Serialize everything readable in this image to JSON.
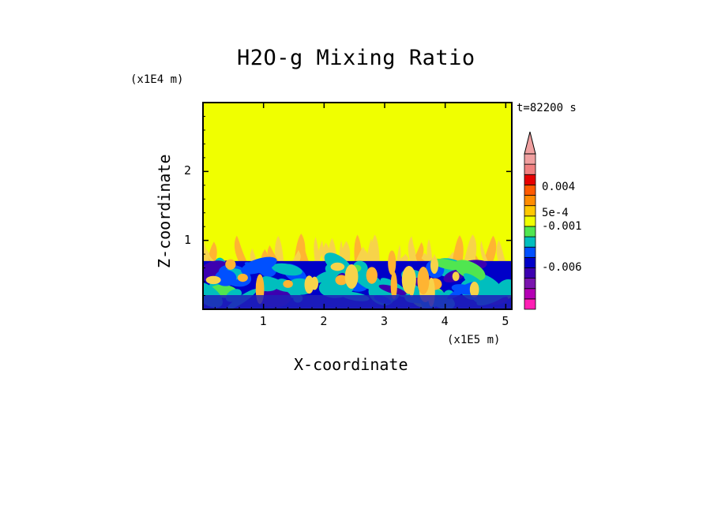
{
  "chart_data": {
    "type": "heatmap",
    "title": "H2O-g Mixing Ratio",
    "xlabel": "X-coordinate",
    "ylabel": "Z-coordinate",
    "x_unit_label": "(x1E5 m)",
    "y_unit_label": "(x1E4 m)",
    "time_label": "t=82200 s",
    "xlim": [
      0,
      5.1
    ],
    "ylim": [
      0,
      3.0
    ],
    "x_ticks": [
      "1",
      "2",
      "3",
      "4",
      "5"
    ],
    "y_ticks": [
      "1",
      "2"
    ],
    "field_description_levels": {
      "upper_region_value_band": "yellow",
      "boundary_layer_top": 0.7,
      "plume_top": 1.05
    },
    "colorbar": {
      "labels": [
        "0.004",
        "5e-4",
        "-0.001",
        "-0.006"
      ],
      "extend": "max",
      "colors": [
        "#ff1fb4",
        "#b400b4",
        "#7a14ae",
        "#3c00b0",
        "#0000c8",
        "#0050ff",
        "#00bebe",
        "#50e650",
        "#f0ff00",
        "#ffc800",
        "#ff8c00",
        "#ff5a00",
        "#e60000",
        "#f08080",
        "#f0a0a0"
      ]
    }
  }
}
